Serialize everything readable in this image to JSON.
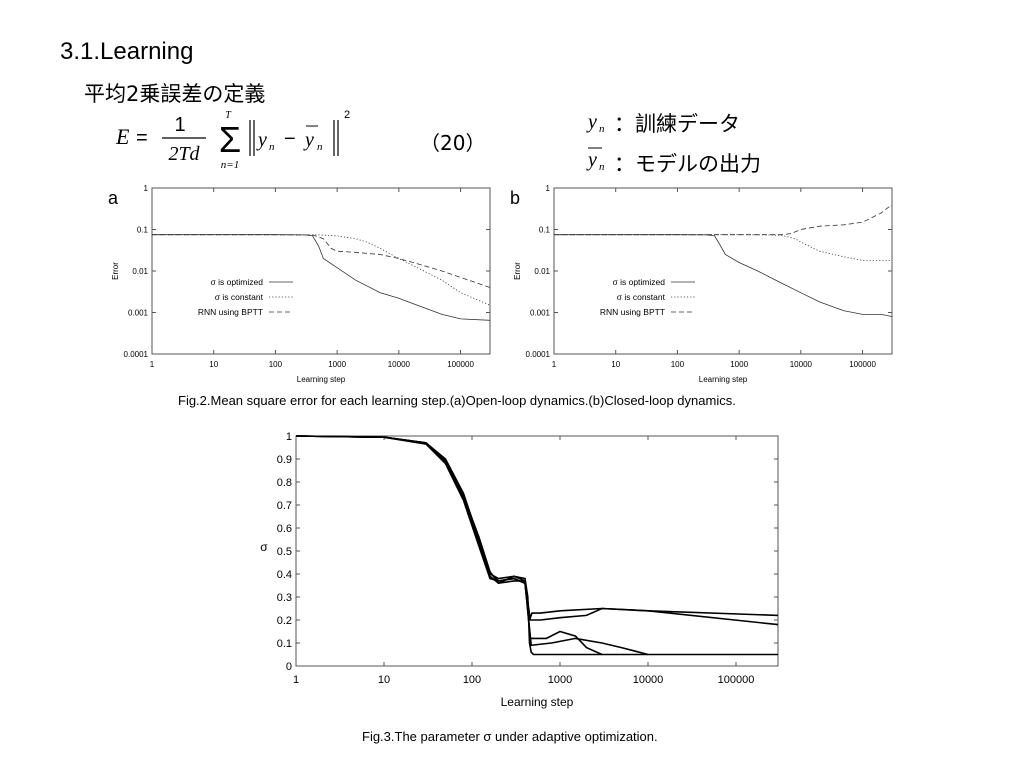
{
  "slide": {
    "heading": "3.1.Learning",
    "subheading": "平均2乗誤差の定義",
    "equation_number": "（20）",
    "defs": [
      {
        "symbol": "y",
        "subscript": "n",
        "text": "：訓練データ"
      },
      {
        "symbol": "y",
        "subscript": "n",
        "text": "：モデルの出力"
      }
    ],
    "equation": {
      "lhs": "E",
      "eq": "=",
      "numerator": "1",
      "denominator": "2Td",
      "sum_top": "T",
      "sum_bottom": "n=1",
      "term_y": "y",
      "term_sub": "n",
      "minus": "−",
      "power": "2"
    }
  },
  "fig2": {
    "caption": "Fig.2.Mean square error for each learning step.(a)Open-loop dynamics.(b)Closed-loop dynamics.",
    "legend": [
      "σ is optimized",
      "σ is constant",
      "RNN using BPTT"
    ]
  },
  "fig3": {
    "caption": "Fig.3.The parameter σ under adaptive optimization."
  },
  "chart_data": [
    {
      "type": "line",
      "panel_label": "a",
      "xlabel": "Learning step",
      "ylabel": "Error",
      "x_scale": "log",
      "y_scale": "log",
      "xlim": [
        1,
        300000
      ],
      "ylim": [
        0.0001,
        1
      ],
      "x_ticks": [
        "1",
        "10",
        "100",
        "1000",
        "10000",
        "100000"
      ],
      "y_ticks": [
        "0.0001",
        "0.001",
        "0.01",
        "0.1",
        "1"
      ],
      "legend_placement": "center-left",
      "series": [
        {
          "name": "σ is optimized",
          "style": "solid",
          "x": [
            1,
            10,
            100,
            300,
            400,
            500,
            600,
            1000,
            2000,
            5000,
            10000,
            20000,
            50000,
            100000,
            300000
          ],
          "y": [
            0.075,
            0.075,
            0.075,
            0.074,
            0.07,
            0.04,
            0.02,
            0.012,
            0.006,
            0.003,
            0.0022,
            0.0015,
            0.0009,
            0.0007,
            0.00065
          ]
        },
        {
          "name": "σ is constant",
          "style": "dotted",
          "x": [
            1,
            10,
            100,
            500,
            1000,
            2000,
            3000,
            5000,
            10000,
            20000,
            50000,
            100000,
            300000
          ],
          "y": [
            0.075,
            0.075,
            0.075,
            0.074,
            0.07,
            0.06,
            0.05,
            0.035,
            0.02,
            0.012,
            0.006,
            0.003,
            0.0015
          ]
        },
        {
          "name": "RNN using BPTT",
          "style": "dashed",
          "x": [
            1,
            10,
            100,
            400,
            600,
            800,
            1000,
            2000,
            5000,
            10000,
            20000,
            50000,
            100000,
            300000
          ],
          "y": [
            0.075,
            0.075,
            0.075,
            0.074,
            0.06,
            0.035,
            0.03,
            0.028,
            0.025,
            0.02,
            0.015,
            0.01,
            0.007,
            0.004
          ]
        }
      ]
    },
    {
      "type": "line",
      "panel_label": "b",
      "xlabel": "Learning step",
      "ylabel": "Error",
      "x_scale": "log",
      "y_scale": "log",
      "xlim": [
        1,
        300000
      ],
      "ylim": [
        0.0001,
        1
      ],
      "x_ticks": [
        "1",
        "10",
        "100",
        "1000",
        "10000",
        "100000"
      ],
      "y_ticks": [
        "0.0001",
        "0.001",
        "0.01",
        "0.1",
        "1"
      ],
      "legend_placement": "center-left",
      "series": [
        {
          "name": "σ is optimized",
          "style": "solid",
          "x": [
            1,
            10,
            100,
            300,
            400,
            500,
            600,
            1000,
            2000,
            5000,
            10000,
            20000,
            50000,
            100000,
            200000,
            300000
          ],
          "y": [
            0.075,
            0.075,
            0.075,
            0.074,
            0.07,
            0.04,
            0.025,
            0.016,
            0.01,
            0.005,
            0.003,
            0.0018,
            0.0011,
            0.0009,
            0.0009,
            0.0008
          ]
        },
        {
          "name": "σ is constant",
          "style": "dotted",
          "x": [
            1,
            10,
            100,
            1000,
            3000,
            5000,
            8000,
            10000,
            20000,
            50000,
            100000,
            300000
          ],
          "y": [
            0.075,
            0.075,
            0.075,
            0.075,
            0.074,
            0.072,
            0.06,
            0.05,
            0.03,
            0.022,
            0.018,
            0.018
          ]
        },
        {
          "name": "RNN using BPTT",
          "style": "dashed",
          "x": [
            1,
            10,
            100,
            1000,
            5000,
            7000,
            10000,
            20000,
            50000,
            100000,
            200000,
            300000
          ],
          "y": [
            0.075,
            0.075,
            0.075,
            0.075,
            0.075,
            0.08,
            0.1,
            0.12,
            0.13,
            0.15,
            0.25,
            0.4
          ]
        }
      ]
    },
    {
      "type": "line",
      "xlabel": "Learning step",
      "ylabel": "σ",
      "x_scale": "log",
      "xlim": [
        1,
        300000
      ],
      "ylim": [
        0,
        1
      ],
      "x_ticks": [
        "1",
        "10",
        "100",
        "1000",
        "10000",
        "100000"
      ],
      "y_ticks": [
        "0",
        "0.1",
        "0.2",
        "0.3",
        "0.4",
        "0.5",
        "0.6",
        "0.7",
        "0.8",
        "0.9",
        "1"
      ],
      "series": [
        {
          "x": [
            1,
            10,
            30,
            50,
            80,
            120,
            160,
            200,
            300,
            400,
            430,
            450,
            470,
            500,
            1000,
            3000,
            10000,
            300000
          ],
          "y": [
            1,
            0.995,
            0.97,
            0.9,
            0.75,
            0.55,
            0.4,
            0.38,
            0.39,
            0.38,
            0.3,
            0.1,
            0.06,
            0.05,
            0.05,
            0.05,
            0.05,
            0.05
          ]
        },
        {
          "x": [
            1,
            10,
            30,
            50,
            80,
            120,
            160,
            200,
            300,
            400,
            450,
            480,
            600,
            1000,
            3000,
            10000,
            300000
          ],
          "y": [
            1,
            0.995,
            0.965,
            0.88,
            0.72,
            0.52,
            0.38,
            0.37,
            0.38,
            0.36,
            0.2,
            0.23,
            0.23,
            0.24,
            0.25,
            0.24,
            0.22
          ]
        },
        {
          "x": [
            1,
            10,
            30,
            50,
            80,
            120,
            160,
            200,
            300,
            400,
            460,
            600,
            1000,
            2000,
            3000,
            10000,
            300000
          ],
          "y": [
            1,
            0.995,
            0.97,
            0.89,
            0.74,
            0.56,
            0.41,
            0.36,
            0.37,
            0.37,
            0.2,
            0.2,
            0.21,
            0.22,
            0.25,
            0.24,
            0.18
          ]
        },
        {
          "x": [
            1,
            10,
            30,
            50,
            80,
            120,
            160,
            200,
            300,
            400,
            460,
            700,
            1000,
            1500,
            2000,
            3000
          ],
          "y": [
            1,
            0.995,
            0.968,
            0.885,
            0.73,
            0.54,
            0.39,
            0.36,
            0.39,
            0.37,
            0.12,
            0.12,
            0.15,
            0.13,
            0.08,
            0.05
          ]
        },
        {
          "x": [
            1,
            10,
            30,
            50,
            80,
            120,
            160,
            200,
            300,
            400,
            470,
            800,
            1500,
            3000,
            5000,
            10000
          ],
          "y": [
            1,
            0.995,
            0.97,
            0.895,
            0.745,
            0.545,
            0.405,
            0.37,
            0.38,
            0.36,
            0.09,
            0.1,
            0.12,
            0.1,
            0.08,
            0.05
          ]
        }
      ]
    }
  ]
}
